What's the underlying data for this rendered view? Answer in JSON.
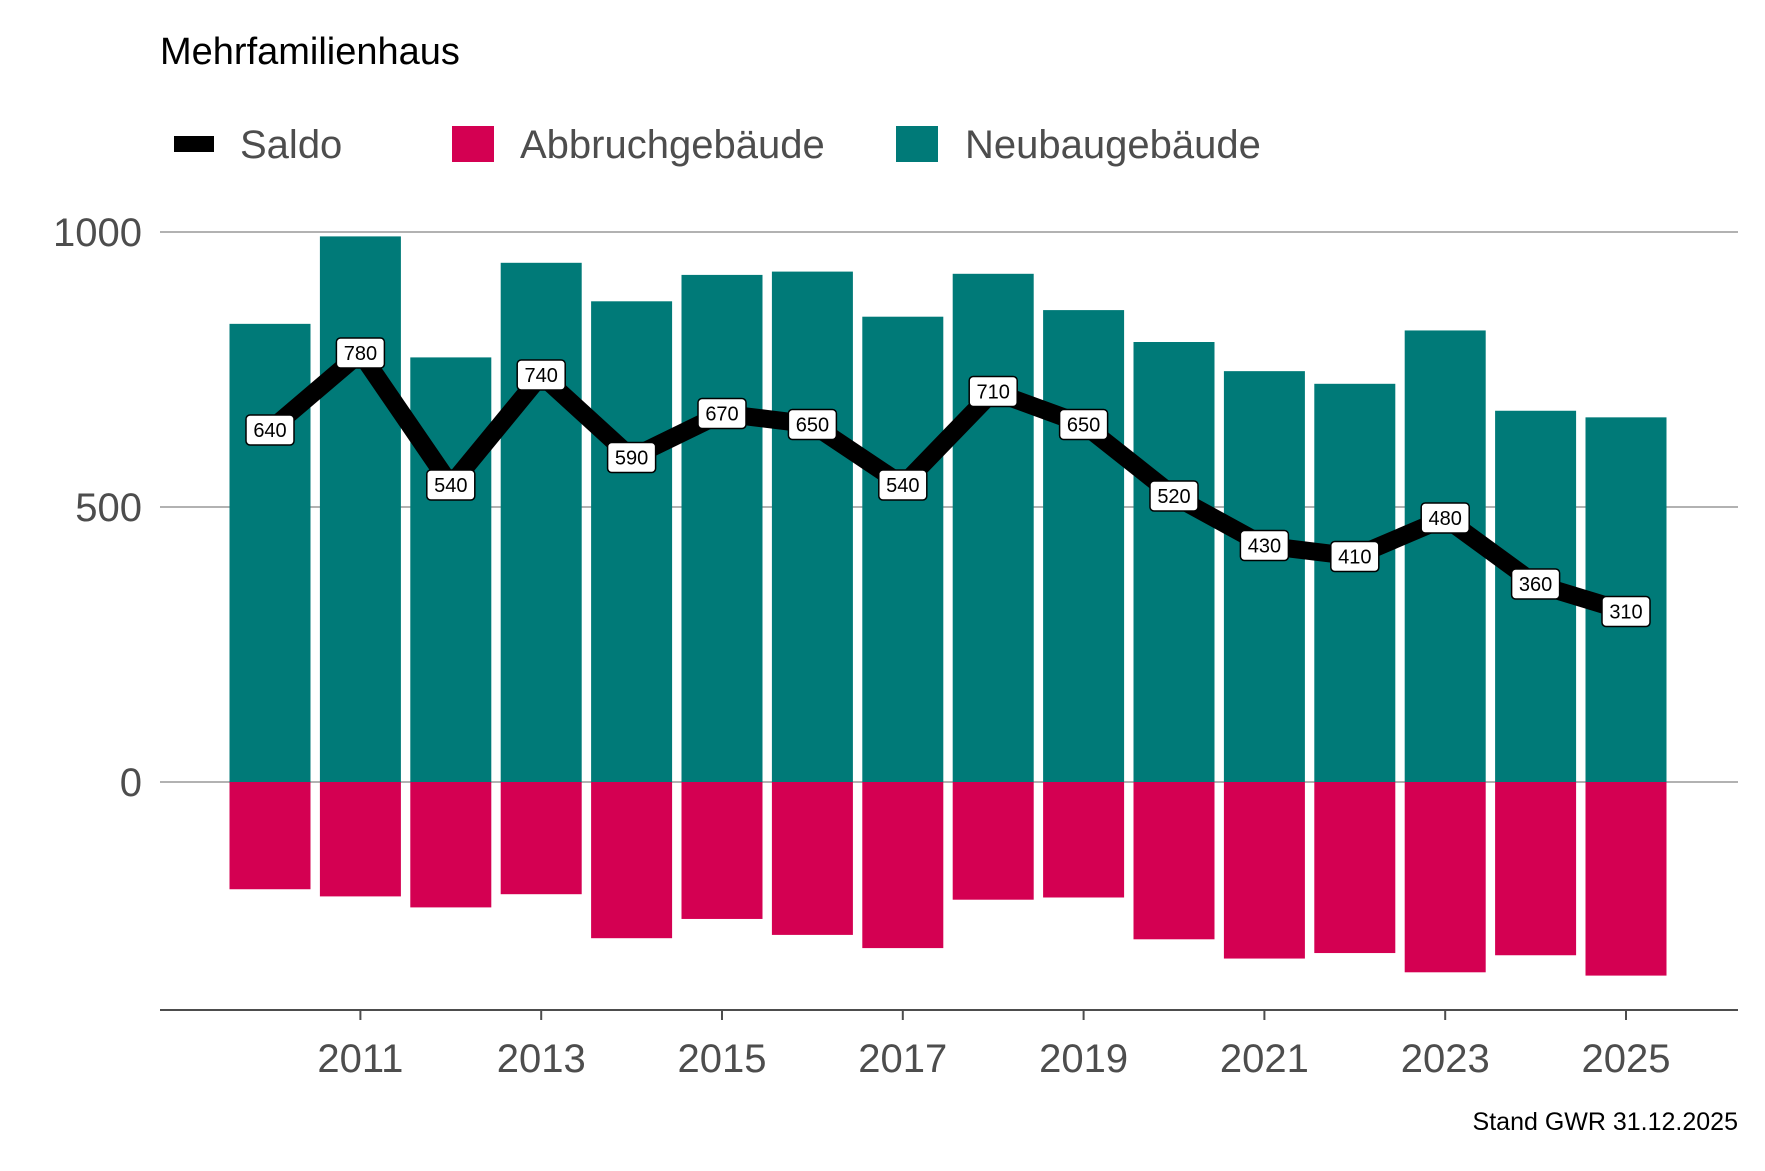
{
  "chart_data": {
    "type": "bar",
    "title": "Mehrfamilienhaus",
    "caption": "Stand GWR 31.12.2025",
    "xlabel": "",
    "ylabel": "",
    "ylim": [
      -420,
      1000
    ],
    "yticks": [
      0,
      500,
      1000
    ],
    "xticks": [
      2011,
      2013,
      2015,
      2017,
      2019,
      2021,
      2023,
      2025
    ],
    "grid": "horizontal",
    "legend_position": "top-left",
    "categories": [
      2010,
      2011,
      2012,
      2013,
      2014,
      2015,
      2016,
      2017,
      2018,
      2019,
      2020,
      2021,
      2022,
      2023,
      2024,
      2025
    ],
    "series": [
      {
        "name": "Saldo",
        "type": "line",
        "color": "#000000",
        "values": [
          640,
          780,
          540,
          740,
          590,
          670,
          650,
          540,
          710,
          650,
          520,
          430,
          410,
          480,
          360,
          310
        ]
      },
      {
        "name": "Abbruchgebäude",
        "type": "bar",
        "color": "#d40052",
        "values": [
          -195,
          -208,
          -228,
          -204,
          -284,
          -249,
          -278,
          -302,
          -214,
          -210,
          -286,
          -321,
          -311,
          -346,
          -315,
          -352
        ]
      },
      {
        "name": "Neubaugebäude",
        "type": "bar",
        "color": "#007a78",
        "values": [
          833,
          992,
          772,
          944,
          874,
          922,
          928,
          846,
          924,
          858,
          800,
          747,
          724,
          821,
          675,
          663
        ]
      }
    ]
  }
}
